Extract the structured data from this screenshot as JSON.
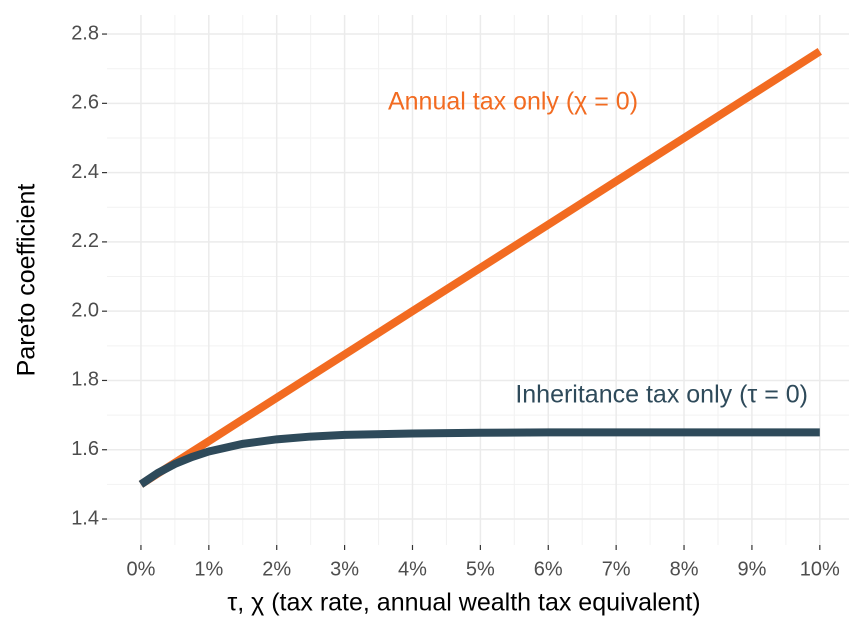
{
  "chart_data": {
    "type": "line",
    "x": [
      0,
      0.25,
      0.5,
      0.75,
      1,
      1.5,
      2,
      2.5,
      3,
      4,
      5,
      6,
      7,
      8,
      9,
      10
    ],
    "series": [
      {
        "name": "Annual tax only (χ = 0)",
        "color": "#f26b21",
        "values": [
          1.5,
          1.53125,
          1.5625,
          1.59375,
          1.625,
          1.6875,
          1.75,
          1.8125,
          1.875,
          2,
          2.125,
          2.25,
          2.375,
          2.5,
          2.625,
          2.75
        ]
      },
      {
        "name": "Inheritance tax only (τ = 0)",
        "color": "#2e4a5a",
        "values": [
          1.5,
          1.533,
          1.559,
          1.579,
          1.595,
          1.617,
          1.63,
          1.638,
          1.643,
          1.647,
          1.649,
          1.65,
          1.65,
          1.65,
          1.65,
          1.65
        ]
      }
    ],
    "xlabel": "τ, χ (tax rate, annual wealth tax equivalent)",
    "ylabel": "Pareto coefficient",
    "xlim": [
      -0.5,
      10.43
    ],
    "ylim": [
      1.325,
      2.855
    ],
    "xticks": [
      {
        "value": 0,
        "label": "0%"
      },
      {
        "value": 1,
        "label": "1%"
      },
      {
        "value": 2,
        "label": "2%"
      },
      {
        "value": 3,
        "label": "3%"
      },
      {
        "value": 4,
        "label": "4%"
      },
      {
        "value": 5,
        "label": "5%"
      },
      {
        "value": 6,
        "label": "6%"
      },
      {
        "value": 7,
        "label": "7%"
      },
      {
        "value": 8,
        "label": "8%"
      },
      {
        "value": 9,
        "label": "9%"
      },
      {
        "value": 10,
        "label": "10%"
      }
    ],
    "yticks": [
      {
        "value": 1.4,
        "label": "1.4"
      },
      {
        "value": 1.6,
        "label": "1.6"
      },
      {
        "value": 1.8,
        "label": "1.8"
      },
      {
        "value": 2.0,
        "label": "2.0"
      },
      {
        "value": 2.2,
        "label": "2.2"
      },
      {
        "value": 2.4,
        "label": "2.4"
      },
      {
        "value": 2.6,
        "label": "2.6"
      },
      {
        "value": 2.8,
        "label": "2.8"
      }
    ],
    "grid": true
  }
}
